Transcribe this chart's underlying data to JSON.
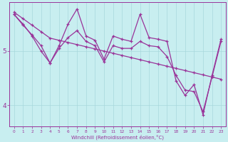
{
  "xlabel": "Windchill (Refroidissement éolien,°C)",
  "background_color": "#c8eef0",
  "grid_color": "#a8d8dc",
  "line_color": "#993399",
  "x": [
    0,
    1,
    2,
    3,
    4,
    5,
    6,
    7,
    8,
    9,
    10,
    11,
    12,
    13,
    14,
    15,
    16,
    17,
    18,
    19,
    20,
    21,
    22,
    23
  ],
  "line1_smooth": [
    5.72,
    5.6,
    5.48,
    5.36,
    5.24,
    5.2,
    5.16,
    5.12,
    5.08,
    5.04,
    5.0,
    4.96,
    4.92,
    4.88,
    4.84,
    4.8,
    4.76,
    4.72,
    4.68,
    4.64,
    4.6,
    4.56,
    4.52,
    4.48
  ],
  "line2_zigzag": [
    5.68,
    5.5,
    5.28,
    5.0,
    4.78,
    5.1,
    5.5,
    5.78,
    5.28,
    5.2,
    4.85,
    5.28,
    5.22,
    5.18,
    5.68,
    5.25,
    5.22,
    5.18,
    4.45,
    4.18,
    4.38,
    3.82,
    4.55,
    5.22
  ],
  "line3_mid": [
    5.68,
    5.48,
    5.3,
    5.1,
    4.78,
    5.05,
    5.25,
    5.38,
    5.18,
    5.1,
    4.8,
    5.1,
    5.05,
    5.05,
    5.18,
    5.1,
    5.08,
    4.9,
    4.55,
    4.28,
    4.25,
    3.88,
    4.52,
    5.18
  ],
  "yticks": [
    4,
    5
  ],
  "ylim": [
    3.6,
    5.9
  ],
  "xlim": [
    -0.5,
    23.5
  ],
  "xticks": [
    0,
    1,
    2,
    3,
    4,
    5,
    6,
    7,
    8,
    9,
    10,
    11,
    12,
    13,
    14,
    15,
    16,
    17,
    18,
    19,
    20,
    21,
    22,
    23
  ]
}
